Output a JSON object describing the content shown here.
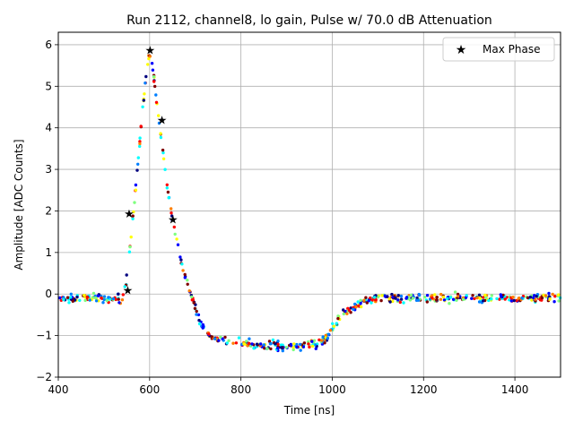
{
  "chart_data": {
    "type": "scatter",
    "title": "Run 2112, channel8, lo gain, Pulse w/ 70.0 dB Attenuation",
    "xlabel": "Time [ns]",
    "ylabel": "Amplitude [ADC Counts]",
    "xlim": [
      400,
      1500
    ],
    "ylim": [
      -2,
      6.3
    ],
    "xticks": [
      400,
      600,
      800,
      1000,
      1200,
      1400
    ],
    "yticks": [
      -2,
      -1,
      0,
      1,
      2,
      3,
      4,
      5,
      6
    ],
    "grid": true,
    "legend": {
      "placement": "top-right",
      "entries": [
        "Max Phase"
      ]
    },
    "pulse_profile": {
      "x": [
        400,
        540,
        548,
        555,
        565,
        575,
        585,
        595,
        600,
        605,
        612,
        620,
        628,
        636,
        645,
        655,
        665,
        675,
        690,
        705,
        720,
        740,
        780,
        850,
        920,
        970,
        990,
        1005,
        1020,
        1040,
        1060,
        1080,
        1100,
        1500
      ],
      "y": [
        -0.1,
        -0.1,
        0.2,
        0.9,
        2.0,
        3.2,
        4.5,
        5.5,
        5.85,
        5.6,
        5.0,
        4.2,
        3.5,
        2.8,
        2.1,
        1.5,
        1.0,
        0.5,
        0.0,
        -0.5,
        -0.9,
        -1.05,
        -1.15,
        -1.25,
        -1.25,
        -1.2,
        -1.0,
        -0.75,
        -0.5,
        -0.35,
        -0.25,
        -0.15,
        -0.1,
        -0.1
      ]
    },
    "max_phase_points": {
      "name": "Max Phase",
      "x": [
        552,
        555,
        601,
        627,
        651
      ],
      "y": [
        0.1,
        1.95,
        5.88,
        4.2,
        1.8
      ]
    },
    "point_colormap": [
      "#00007f",
      "#0000ff",
      "#007fff",
      "#00ffff",
      "#7fff7f",
      "#ffff00",
      "#ff7f00",
      "#ff0000",
      "#7f0000"
    ],
    "noise_sigma": 0.12,
    "points_per_ns": 0.55
  }
}
